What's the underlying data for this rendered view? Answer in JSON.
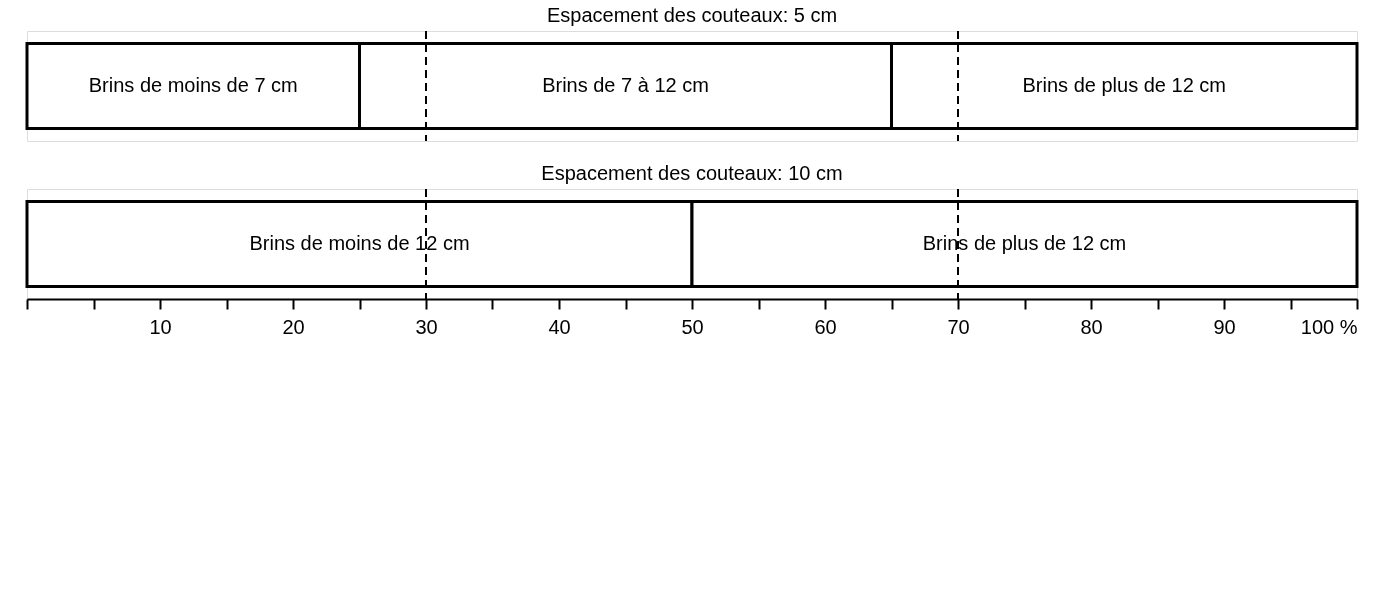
{
  "chart_data": [
    {
      "type": "bar",
      "title": "Espacement des couteaux: 5 cm",
      "orientation": "horizontal",
      "stacked": true,
      "categories": [
        null
      ],
      "series": [
        {
          "name": "Brins de moins de 7 cm",
          "color": "#ffffff",
          "values": [
            25
          ]
        },
        {
          "name": "Brins de 7 à 12 cm",
          "color": "#ffffff",
          "values": [
            40
          ]
        },
        {
          "name": "Brins de plus de 12 cm",
          "color": "#ffffff",
          "values": [
            35
          ]
        }
      ],
      "xlim": [
        0,
        100
      ],
      "tick_labels": false,
      "ref_lines": [
        {
          "axis": "x",
          "value": 30,
          "line_style": "dashed",
          "color": "#000000"
        },
        {
          "axis": "x",
          "value": 70,
          "line_style": "dashed",
          "color": "#000000"
        }
      ]
    },
    {
      "type": "bar",
      "title": "Espacement des couteaux: 10 cm",
      "orientation": "horizontal",
      "stacked": true,
      "categories": [
        null
      ],
      "series": [
        {
          "name": "Brins de moins de 12 cm",
          "color": "#ffffff",
          "values": [
            50
          ]
        },
        {
          "name": "Brins de plus de 12 cm",
          "color": "#ffffff",
          "values": [
            50
          ]
        }
      ],
      "xlim": [
        0,
        100
      ],
      "xticks": [
        {
          "value": 0,
          "label": null
        },
        {
          "value": 5,
          "label": null
        },
        10,
        {
          "value": 15,
          "label": null
        },
        20,
        {
          "value": 25,
          "label": null
        },
        30,
        {
          "value": 35,
          "label": null
        },
        40,
        {
          "value": 45,
          "label": null
        },
        50,
        {
          "value": 55,
          "label": null
        },
        60,
        {
          "value": 65,
          "label": null
        },
        70,
        {
          "value": 75,
          "label": null
        },
        80,
        {
          "value": 85,
          "label": null
        },
        90,
        {
          "value": 95,
          "label": null
        },
        {
          "value": 100,
          "label": "100 %"
        }
      ],
      "tick_labels": "x",
      "ref_lines": [
        {
          "axis": "x",
          "value": 30,
          "line_style": "dashed",
          "color": "#000000"
        },
        {
          "axis": "x",
          "value": 70,
          "line_style": "dashed",
          "color": "#000000"
        }
      ]
    }
  ]
}
